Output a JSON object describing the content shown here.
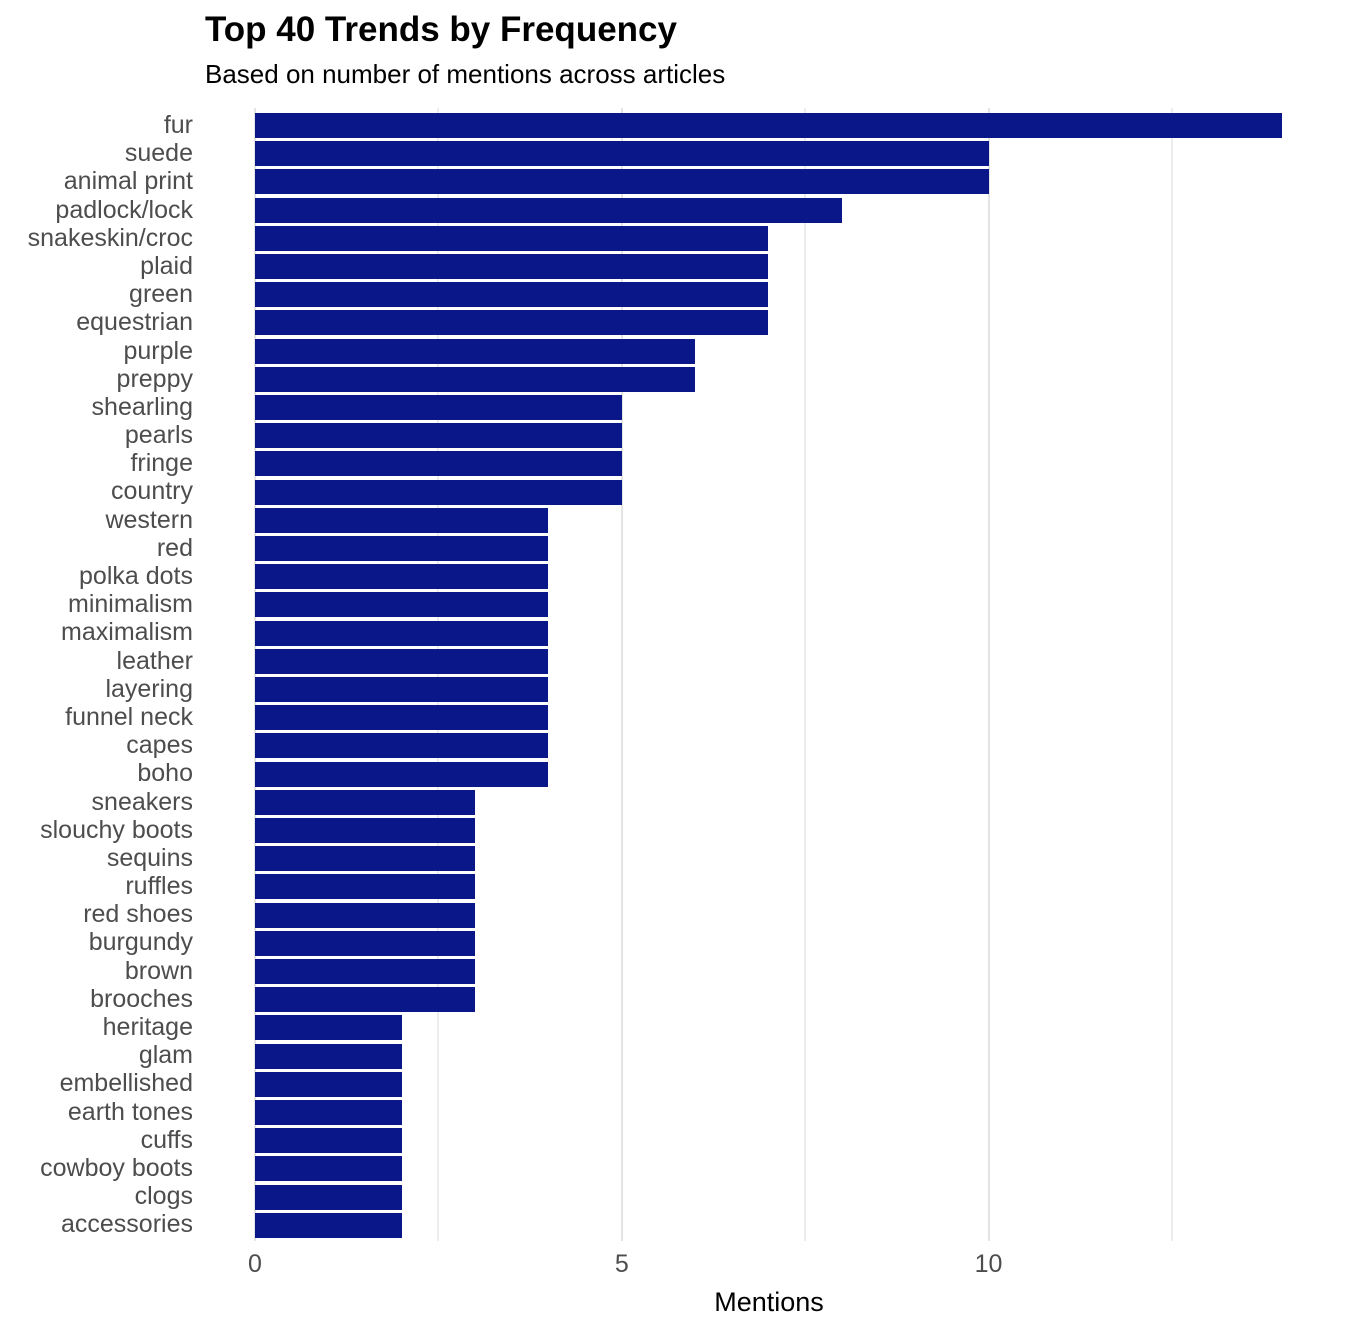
{
  "chart_data": {
    "type": "bar",
    "orientation": "horizontal",
    "title": "Top 40 Trends by Frequency",
    "subtitle": "Based on number of mentions across articles",
    "xlabel": "Mentions",
    "ylabel": "",
    "categories": [
      "fur",
      "suede",
      "animal print",
      "padlock/lock",
      "snakeskin/croc",
      "plaid",
      "green",
      "equestrian",
      "purple",
      "preppy",
      "shearling",
      "pearls",
      "fringe",
      "country",
      "western",
      "red",
      "polka dots",
      "minimalism",
      "maximalism",
      "leather",
      "layering",
      "funnel neck",
      "capes",
      "boho",
      "sneakers",
      "slouchy boots",
      "sequins",
      "ruffles",
      "red shoes",
      "burgundy",
      "brown",
      "brooches",
      "heritage",
      "glam",
      "embellished",
      "earth tones",
      "cuffs",
      "cowboy boots",
      "clogs",
      "accessories"
    ],
    "values": [
      14,
      10,
      10,
      8,
      7,
      7,
      7,
      7,
      6,
      6,
      5,
      5,
      5,
      5,
      4,
      4,
      4,
      4,
      4,
      4,
      4,
      4,
      4,
      4,
      3,
      3,
      3,
      3,
      3,
      3,
      3,
      3,
      2,
      2,
      2,
      2,
      2,
      2,
      2,
      2
    ],
    "xlim": [
      0,
      14.9
    ],
    "x_ticks": {
      "labels": [
        "0",
        "5",
        "10"
      ],
      "values": [
        0,
        5,
        10
      ]
    },
    "major_gridlines": [
      0,
      5,
      10
    ],
    "minor_gridlines": [
      2.5,
      7.5,
      12.5
    ],
    "grid": "vertical-only",
    "legend_position": "none",
    "colors": {
      "bar": "#0A1788",
      "axis_text": "#4D4D4D",
      "title_text": "#000000",
      "grid_major": "#E4E4E4",
      "grid_minor": "#EDEDED",
      "background": "#FFFFFF"
    }
  }
}
